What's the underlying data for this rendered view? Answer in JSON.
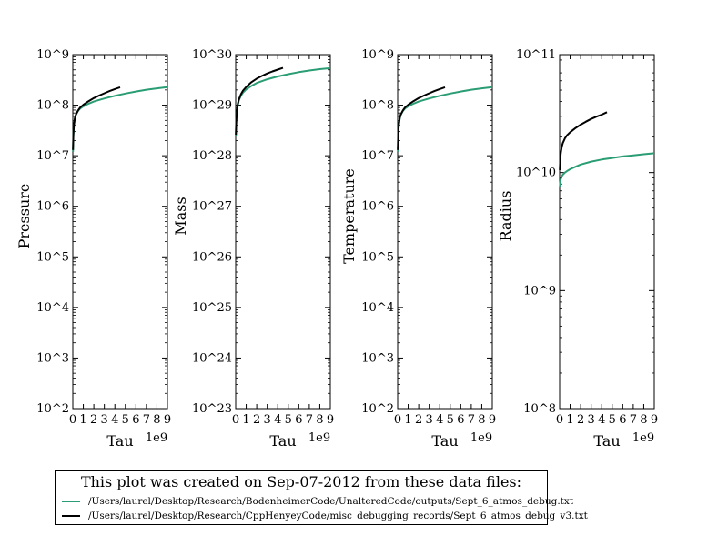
{
  "x_tick_labels": [
    "0",
    "1",
    "2",
    "3",
    "4",
    "5",
    "6",
    "7",
    "8",
    "9"
  ],
  "x_offset_label": "1e9",
  "colors": {
    "series_0": "#2a9d74",
    "series_1": "#000000"
  },
  "chart_data": [
    {
      "type": "line",
      "scale_y": "log",
      "xlabel": "Tau",
      "ylabel": "Pressure",
      "xlim": [
        0,
        9000000000.0
      ],
      "ylim": [
        100,
        1000000000
      ],
      "y_tick_labels": [
        "10^2",
        "10^3",
        "10^4",
        "10^5",
        "10^6",
        "10^7",
        "10^8",
        "10^9"
      ],
      "series": [
        {
          "x": [
            20000000.0,
            50000000.0,
            100000000.0,
            200000000.0,
            300000000.0,
            500000000.0,
            700000000.0,
            1000000000.0,
            1500000000.0,
            2000000000.0,
            3000000000.0,
            4000000000.0,
            5000000000.0,
            6000000000.0,
            7000000000.0,
            8000000000.0,
            9000000000.0
          ],
          "values": [
            12000000.0,
            25000000.0,
            40000000.0,
            55000000.0,
            65000000.0,
            77000000.0,
            86000000.0,
            95000000.0,
            107000000.0,
            118000000.0,
            136000000.0,
            153000000.0,
            170000000.0,
            186000000.0,
            202000000.0,
            215000000.0,
            228000000.0
          ]
        },
        {
          "x": [
            20000000.0,
            50000000.0,
            100000000.0,
            200000000.0,
            300000000.0,
            500000000.0,
            700000000.0,
            1000000000.0,
            1500000000.0,
            2000000000.0,
            2500000000.0,
            3000000000.0,
            3500000000.0,
            4000000000.0,
            4500000000.0
          ],
          "values": [
            13000000.0,
            26000000.0,
            40000000.0,
            56000000.0,
            66000000.0,
            79000000.0,
            90000000.0,
            102000000.0,
            120000000.0,
            138000000.0,
            155000000.0,
            172000000.0,
            190000000.0,
            208000000.0,
            226000000.0
          ]
        }
      ]
    },
    {
      "type": "line",
      "scale_y": "log",
      "xlabel": "Tau",
      "ylabel": "Mass",
      "xlim": [
        0,
        9000000000.0
      ],
      "ylim": [
        1e+23,
        1e+30
      ],
      "y_tick_labels": [
        "10^23",
        "10^24",
        "10^25",
        "10^26",
        "10^27",
        "10^28",
        "10^29",
        "10^30"
      ],
      "series": [
        {
          "x": [
            20000000.0,
            50000000.0,
            100000000.0,
            200000000.0,
            300000000.0,
            500000000.0,
            700000000.0,
            1000000000.0,
            1500000000.0,
            2000000000.0,
            3000000000.0,
            4000000000.0,
            5000000000.0,
            6000000000.0,
            7000000000.0,
            8000000000.0,
            9000000000.0
          ],
          "values": [
            2.5e+28,
            4.5e+28,
            7e+28,
            1e+29,
            1.25e+29,
            1.55e+29,
            1.78e+29,
            2.05e+29,
            2.4e+29,
            2.75e+29,
            3.25e+29,
            3.7e+29,
            4.1e+29,
            4.5e+29,
            4.85e+29,
            5.15e+29,
            5.4e+29
          ]
        },
        {
          "x": [
            20000000.0,
            50000000.0,
            100000000.0,
            200000000.0,
            300000000.0,
            500000000.0,
            700000000.0,
            1000000000.0,
            1500000000.0,
            2000000000.0,
            2500000000.0,
            3000000000.0,
            3500000000.0,
            4000000000.0,
            4500000000.0
          ],
          "values": [
            2.6e+28,
            4.6e+28,
            7e+28,
            1.05e+29,
            1.3e+29,
            1.65e+29,
            1.95e+29,
            2.3e+29,
            2.85e+29,
            3.35e+29,
            3.8e+29,
            4.25e+29,
            4.65e+29,
            5.05e+29,
            5.45e+29
          ]
        }
      ]
    },
    {
      "type": "line",
      "scale_y": "log",
      "xlabel": "Tau",
      "ylabel": "Temperature",
      "xlim": [
        0,
        9000000000.0
      ],
      "ylim": [
        100,
        1000000000
      ],
      "y_tick_labels": [
        "10^2",
        "10^3",
        "10^4",
        "10^5",
        "10^6",
        "10^7",
        "10^8",
        "10^9"
      ],
      "series": [
        {
          "x": [
            20000000.0,
            50000000.0,
            100000000.0,
            200000000.0,
            300000000.0,
            500000000.0,
            700000000.0,
            1000000000.0,
            1500000000.0,
            2000000000.0,
            3000000000.0,
            4000000000.0,
            5000000000.0,
            6000000000.0,
            7000000000.0,
            8000000000.0,
            9000000000.0
          ],
          "values": [
            12000000.0,
            25000000.0,
            40000000.0,
            55000000.0,
            65000000.0,
            77000000.0,
            86000000.0,
            95000000.0,
            107000000.0,
            118000000.0,
            136000000.0,
            153000000.0,
            170000000.0,
            186000000.0,
            202000000.0,
            215000000.0,
            228000000.0
          ]
        },
        {
          "x": [
            20000000.0,
            50000000.0,
            100000000.0,
            200000000.0,
            300000000.0,
            500000000.0,
            700000000.0,
            1000000000.0,
            1500000000.0,
            2000000000.0,
            2500000000.0,
            3000000000.0,
            3500000000.0,
            4000000000.0,
            4500000000.0
          ],
          "values": [
            13000000.0,
            26000000.0,
            40000000.0,
            56000000.0,
            66000000.0,
            79000000.0,
            90000000.0,
            102000000.0,
            120000000.0,
            138000000.0,
            155000000.0,
            172000000.0,
            190000000.0,
            208000000.0,
            226000000.0
          ]
        }
      ]
    },
    {
      "type": "line",
      "scale_y": "log",
      "xlabel": "Tau",
      "ylabel": "Radius",
      "xlim": [
        0,
        9000000000.0
      ],
      "ylim": [
        100000000.0,
        100000000000.0
      ],
      "y_tick_labels": [
        "10^8",
        "10^9",
        "10^10",
        "10^11"
      ],
      "series": [
        {
          "x": [
            20000000.0,
            50000000.0,
            100000000.0,
            200000000.0,
            300000000.0,
            500000000.0,
            700000000.0,
            1000000000.0,
            1500000000.0,
            2000000000.0,
            3000000000.0,
            4000000000.0,
            5000000000.0,
            6000000000.0,
            7000000000.0,
            8000000000.0,
            9000000000.0
          ],
          "values": [
            7500000000.0,
            8200000000.0,
            8800000000.0,
            9300000000.0,
            9600000000.0,
            10000000000.0,
            10300000000.0,
            10700000000.0,
            11200000000.0,
            11700000000.0,
            12400000000.0,
            12900000000.0,
            13300000000.0,
            13700000000.0,
            14000000000.0,
            14300000000.0,
            14600000000.0
          ]
        },
        {
          "x": [
            20000000.0,
            50000000.0,
            100000000.0,
            200000000.0,
            300000000.0,
            500000000.0,
            700000000.0,
            1000000000.0,
            1500000000.0,
            2000000000.0,
            2500000000.0,
            3000000000.0,
            3500000000.0,
            4000000000.0,
            4500000000.0
          ],
          "values": [
            10500000000.0,
            12500000000.0,
            14500000000.0,
            16500000000.0,
            17800000000.0,
            19500000000.0,
            20700000000.0,
            22000000000.0,
            23800000000.0,
            25500000000.0,
            27000000000.0,
            28500000000.0,
            29800000000.0,
            31000000000.0,
            32500000000.0
          ]
        }
      ]
    }
  ],
  "legend": {
    "title": "This plot was created on Sep-07-2012 from these data files:",
    "entries": [
      "/Users/laurel/Desktop/Research/BodenheimerCode/UnalteredCode/outputs/Sept_6_atmos_debug.txt",
      "/Users/laurel/Desktop/Research/CppHenyeyCode/misc_debugging_records/Sept_6_atmos_debug_v3.txt"
    ]
  }
}
